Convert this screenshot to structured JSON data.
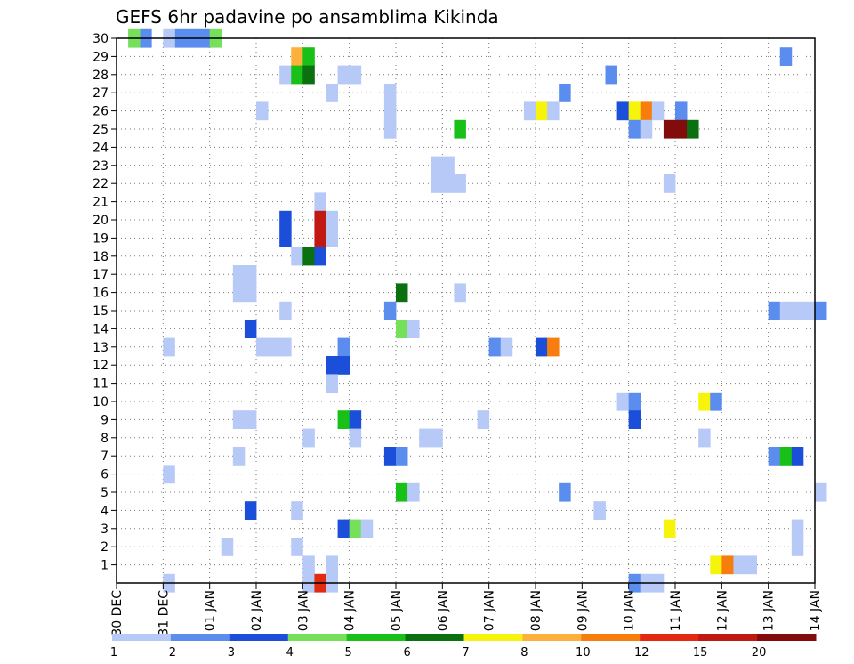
{
  "chart_data": {
    "type": "heatmap",
    "title": "GEFS 6hr padavine po ansamblima Kikinda",
    "xlabel": "",
    "ylabel": "",
    "x_tick_labels": [
      "30 DEC",
      "31 DEC",
      "01 JAN",
      "02 JAN",
      "03 JAN",
      "04 JAN",
      "05 JAN",
      "06 JAN",
      "07 JAN",
      "08 JAN",
      "09 JAN",
      "10 JAN",
      "11 JAN",
      "12 JAN",
      "13 JAN",
      "14 JAN"
    ],
    "y_tick_labels": [
      "1",
      "2",
      "3",
      "4",
      "5",
      "6",
      "7",
      "8",
      "9",
      "10",
      "11",
      "12",
      "13",
      "14",
      "15",
      "16",
      "17",
      "18",
      "19",
      "20",
      "21",
      "22",
      "23",
      "24",
      "25",
      "26",
      "27",
      "28",
      "29",
      "30"
    ],
    "x_range_days": [
      0,
      15
    ],
    "y_range": [
      0,
      30
    ],
    "grid": true,
    "colorbar": {
      "boundaries": [
        "1",
        "2",
        "3",
        "4",
        "5",
        "6",
        "7",
        "8",
        "10",
        "12",
        "15",
        "20"
      ],
      "colors": [
        "#b6c9f7",
        "#5b8def",
        "#1b4fd9",
        "#77e05a",
        "#18c018",
        "#0a7010",
        "#f7f40c",
        "#fbb13c",
        "#f77e0e",
        "#e22a10",
        "#c01812",
        "#820c0c"
      ]
    },
    "cells": [
      {
        "t": 0.5,
        "m": 30,
        "c": 2
      },
      {
        "t": 1.25,
        "m": 30,
        "c": 2
      },
      {
        "t": 1.5,
        "m": 30,
        "c": 2
      },
      {
        "t": 1.75,
        "m": 30,
        "c": 2
      },
      {
        "t": 1.0,
        "m": 30,
        "c": 1
      },
      {
        "t": 0.25,
        "m": 30,
        "c": 4
      },
      {
        "t": 2.0,
        "m": 30,
        "c": 4
      },
      {
        "t": 3.75,
        "m": 29,
        "c": 8
      },
      {
        "t": 4.0,
        "m": 29,
        "c": 5
      },
      {
        "t": 14.25,
        "m": 29,
        "c": 2
      },
      {
        "t": 3.5,
        "m": 28,
        "c": 1
      },
      {
        "t": 3.75,
        "m": 28,
        "c": 5
      },
      {
        "t": 4.0,
        "m": 28,
        "c": 6
      },
      {
        "t": 4.75,
        "m": 28,
        "c": 1
      },
      {
        "t": 5.0,
        "m": 28,
        "c": 1
      },
      {
        "t": 10.5,
        "m": 28,
        "c": 2
      },
      {
        "t": 5.75,
        "m": 27,
        "c": 1
      },
      {
        "t": 5.75,
        "m": 26,
        "c": 1
      },
      {
        "t": 5.75,
        "m": 25,
        "c": 1
      },
      {
        "t": 3.0,
        "m": 26,
        "c": 1
      },
      {
        "t": 4.5,
        "m": 27,
        "c": 1
      },
      {
        "t": 9.5,
        "m": 27,
        "c": 2
      },
      {
        "t": 8.75,
        "m": 26,
        "c": 1
      },
      {
        "t": 9.0,
        "m": 26,
        "c": 7
      },
      {
        "t": 9.25,
        "m": 26,
        "c": 1
      },
      {
        "t": 10.75,
        "m": 26,
        "c": 3
      },
      {
        "t": 11.0,
        "m": 26,
        "c": 7
      },
      {
        "t": 11.25,
        "m": 26,
        "c": 9
      },
      {
        "t": 11.5,
        "m": 26,
        "c": 1
      },
      {
        "t": 12.0,
        "m": 26,
        "c": 2
      },
      {
        "t": 5.75,
        "m": 25,
        "c": 1
      },
      {
        "t": 7.25,
        "m": 25,
        "c": 5
      },
      {
        "t": 11.0,
        "m": 25,
        "c": 2
      },
      {
        "t": 11.25,
        "m": 25,
        "c": 1
      },
      {
        "t": 11.75,
        "m": 25,
        "c": 12
      },
      {
        "t": 12.0,
        "m": 25,
        "c": 12
      },
      {
        "t": 12.25,
        "m": 25,
        "c": 6
      },
      {
        "t": 6.75,
        "m": 23,
        "c": 1
      },
      {
        "t": 7.0,
        "m": 23,
        "c": 1
      },
      {
        "t": 6.75,
        "m": 22,
        "c": 1
      },
      {
        "t": 7.0,
        "m": 22,
        "c": 1
      },
      {
        "t": 7.25,
        "m": 22,
        "c": 1
      },
      {
        "t": 11.75,
        "m": 22,
        "c": 1
      },
      {
        "t": 4.25,
        "m": 21,
        "c": 1
      },
      {
        "t": 3.5,
        "m": 20,
        "c": 3
      },
      {
        "t": 4.25,
        "m": 20,
        "c": 11
      },
      {
        "t": 4.5,
        "m": 20,
        "c": 1
      },
      {
        "t": 3.5,
        "m": 19,
        "c": 3
      },
      {
        "t": 4.25,
        "m": 19,
        "c": 11
      },
      {
        "t": 4.5,
        "m": 19,
        "c": 1
      },
      {
        "t": 3.75,
        "m": 18,
        "c": 1
      },
      {
        "t": 4.0,
        "m": 18,
        "c": 6
      },
      {
        "t": 4.25,
        "m": 18,
        "c": 3
      },
      {
        "t": 2.5,
        "m": 17,
        "c": 1
      },
      {
        "t": 2.75,
        "m": 17,
        "c": 1
      },
      {
        "t": 2.5,
        "m": 16,
        "c": 1
      },
      {
        "t": 2.75,
        "m": 16,
        "c": 1
      },
      {
        "t": 6.0,
        "m": 16,
        "c": 6
      },
      {
        "t": 7.25,
        "m": 16,
        "c": 1
      },
      {
        "t": 3.5,
        "m": 15,
        "c": 1
      },
      {
        "t": 5.75,
        "m": 15,
        "c": 2
      },
      {
        "t": 14.0,
        "m": 15,
        "c": 2
      },
      {
        "t": 14.25,
        "m": 15,
        "c": 1
      },
      {
        "t": 14.5,
        "m": 15,
        "c": 1
      },
      {
        "t": 14.75,
        "m": 15,
        "c": 1
      },
      {
        "t": 15.0,
        "m": 15,
        "c": 2
      },
      {
        "t": 2.75,
        "m": 14,
        "c": 3
      },
      {
        "t": 6.0,
        "m": 14,
        "c": 4
      },
      {
        "t": 6.25,
        "m": 14,
        "c": 1
      },
      {
        "t": 1.0,
        "m": 13,
        "c": 1
      },
      {
        "t": 3.0,
        "m": 13,
        "c": 1
      },
      {
        "t": 3.25,
        "m": 13,
        "c": 1
      },
      {
        "t": 3.5,
        "m": 13,
        "c": 1
      },
      {
        "t": 4.75,
        "m": 13,
        "c": 2
      },
      {
        "t": 8.0,
        "m": 13,
        "c": 2
      },
      {
        "t": 8.25,
        "m": 13,
        "c": 1
      },
      {
        "t": 9.0,
        "m": 13,
        "c": 3
      },
      {
        "t": 9.25,
        "m": 13,
        "c": 9
      },
      {
        "t": 4.5,
        "m": 12,
        "c": 3
      },
      {
        "t": 4.75,
        "m": 12,
        "c": 3
      },
      {
        "t": 4.5,
        "m": 11,
        "c": 1
      },
      {
        "t": 10.75,
        "m": 10,
        "c": 1
      },
      {
        "t": 11.0,
        "m": 10,
        "c": 2
      },
      {
        "t": 12.5,
        "m": 10,
        "c": 7
      },
      {
        "t": 12.75,
        "m": 10,
        "c": 2
      },
      {
        "t": 2.5,
        "m": 9,
        "c": 1
      },
      {
        "t": 2.75,
        "m": 9,
        "c": 1
      },
      {
        "t": 4.75,
        "m": 9,
        "c": 5
      },
      {
        "t": 5.0,
        "m": 9,
        "c": 3
      },
      {
        "t": 7.75,
        "m": 9,
        "c": 1
      },
      {
        "t": 11.0,
        "m": 9,
        "c": 3
      },
      {
        "t": 4.0,
        "m": 8,
        "c": 1
      },
      {
        "t": 5.0,
        "m": 8,
        "c": 1
      },
      {
        "t": 6.5,
        "m": 8,
        "c": 1
      },
      {
        "t": 6.75,
        "m": 8,
        "c": 1
      },
      {
        "t": 12.5,
        "m": 8,
        "c": 1
      },
      {
        "t": 2.5,
        "m": 7,
        "c": 1
      },
      {
        "t": 5.75,
        "m": 7,
        "c": 3
      },
      {
        "t": 6.0,
        "m": 7,
        "c": 2
      },
      {
        "t": 14.0,
        "m": 7,
        "c": 2
      },
      {
        "t": 14.25,
        "m": 7,
        "c": 5
      },
      {
        "t": 14.5,
        "m": 7,
        "c": 3
      },
      {
        "t": 1.0,
        "m": 6,
        "c": 1
      },
      {
        "t": 6.0,
        "m": 5,
        "c": 5
      },
      {
        "t": 6.25,
        "m": 5,
        "c": 1
      },
      {
        "t": 9.5,
        "m": 5,
        "c": 2
      },
      {
        "t": 15.0,
        "m": 5,
        "c": 1
      },
      {
        "t": 2.75,
        "m": 4,
        "c": 3
      },
      {
        "t": 3.75,
        "m": 4,
        "c": 1
      },
      {
        "t": 10.25,
        "m": 4,
        "c": 1
      },
      {
        "t": 4.75,
        "m": 3,
        "c": 3
      },
      {
        "t": 5.0,
        "m": 3,
        "c": 4
      },
      {
        "t": 5.25,
        "m": 3,
        "c": 1
      },
      {
        "t": 11.75,
        "m": 3,
        "c": 7
      },
      {
        "t": 14.5,
        "m": 3,
        "c": 1
      },
      {
        "t": 2.25,
        "m": 2,
        "c": 1
      },
      {
        "t": 3.75,
        "m": 2,
        "c": 1
      },
      {
        "t": 14.5,
        "m": 2,
        "c": 1
      },
      {
        "t": 4.0,
        "m": 1,
        "c": 1
      },
      {
        "t": 4.5,
        "m": 1,
        "c": 1
      },
      {
        "t": 12.75,
        "m": 1,
        "c": 7
      },
      {
        "t": 13.0,
        "m": 1,
        "c": 9
      },
      {
        "t": 13.25,
        "m": 1,
        "c": 1
      },
      {
        "t": 13.5,
        "m": 1,
        "c": 1
      },
      {
        "t": 1.0,
        "m": 0,
        "c": 1
      },
      {
        "t": 4.0,
        "m": 0,
        "c": 1
      },
      {
        "t": 4.25,
        "m": 0,
        "c": 10
      },
      {
        "t": 4.5,
        "m": 0,
        "c": 1
      },
      {
        "t": 11.0,
        "m": 0,
        "c": 2
      },
      {
        "t": 11.25,
        "m": 0,
        "c": 1
      },
      {
        "t": 11.5,
        "m": 0,
        "c": 1
      }
    ]
  }
}
